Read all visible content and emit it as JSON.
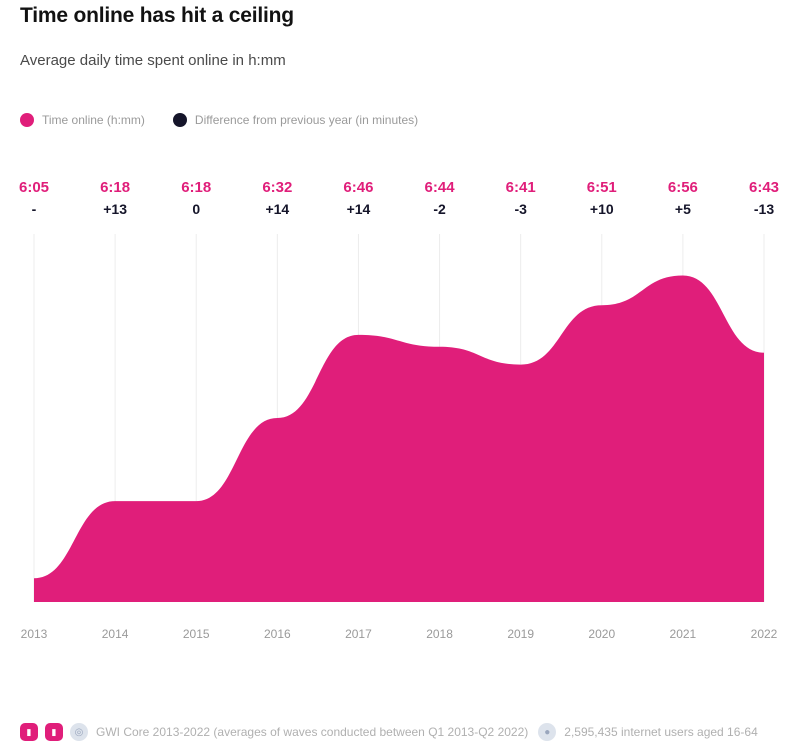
{
  "title": "Time online has hit a ceiling",
  "subtitle": "Average daily time spent online in h:mm",
  "legend": [
    {
      "label": "Time online (h:mm)",
      "color": "#e01e7a"
    },
    {
      "label": "Difference from previous year (in minutes)",
      "color": "#15152a"
    }
  ],
  "colors": {
    "area": "#e01e7a",
    "diff": "#15152a",
    "grid": "#ececec",
    "axis_label": "#9a9a9a"
  },
  "chart_data": {
    "type": "area",
    "x": [
      "2013",
      "2014",
      "2015",
      "2016",
      "2017",
      "2018",
      "2019",
      "2020",
      "2021",
      "2022"
    ],
    "series": [
      {
        "name": "Time online (h:mm)",
        "values": [
          365,
          378,
          378,
          392,
          406,
          404,
          401,
          411,
          416,
          403
        ]
      }
    ],
    "value_labels": [
      "6:05",
      "6:18",
      "6:18",
      "6:32",
      "6:46",
      "6:44",
      "6:41",
      "6:51",
      "6:56",
      "6:43"
    ],
    "difference_labels": [
      "-",
      "+13",
      "0",
      "+14",
      "+14",
      "-2",
      "-3",
      "+10",
      "+5",
      "-13"
    ],
    "ylim": [
      361,
      423
    ],
    "grid": true
  },
  "footer": {
    "source": "GWI Core 2013-2022 (averages of waves conducted between Q1 2013-Q2 2022)",
    "sample": "2,595,435 internet users aged 16-64",
    "icons": [
      "chart-badge-icon",
      "chart-badge-icon",
      "database-icon",
      "users-icon"
    ]
  }
}
